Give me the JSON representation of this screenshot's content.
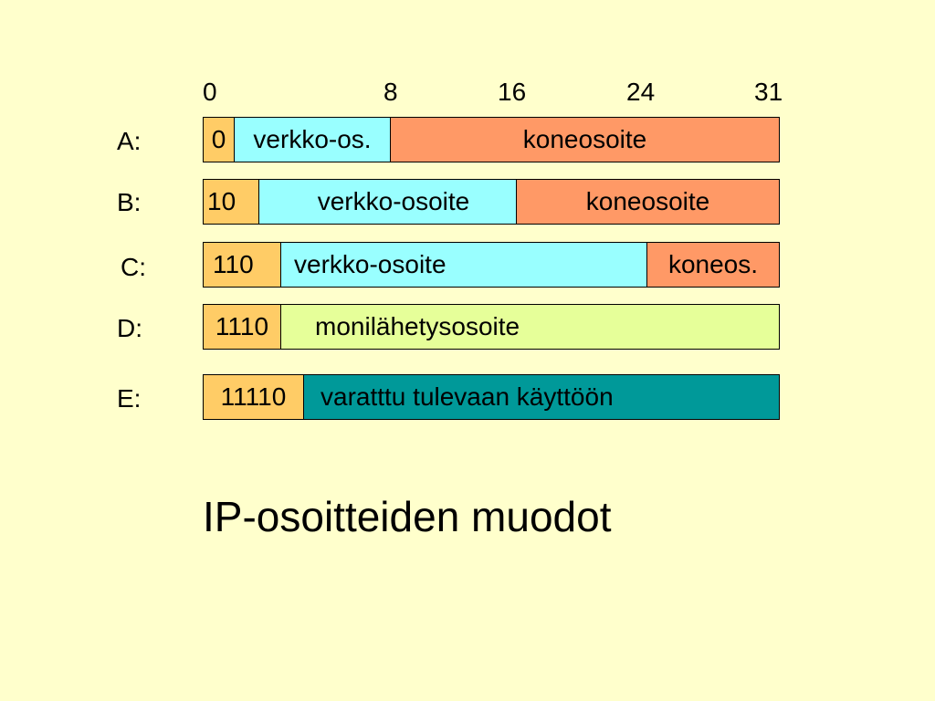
{
  "ticks": [
    "0",
    "8",
    "16",
    "24",
    "31"
  ],
  "rows": {
    "a": {
      "label": "A:",
      "prefix": "0",
      "network": "verkko-os.",
      "host": "koneosoite"
    },
    "b": {
      "label": "B:",
      "prefix": "10",
      "network": "verkko-osoite",
      "host": "koneosoite"
    },
    "c": {
      "label": "C:",
      "prefix": "110",
      "network": "verkko-osoite",
      "host": "koneos."
    },
    "d": {
      "label": "D:",
      "prefix": "1110",
      "body": "monilähetysosoite"
    },
    "e": {
      "label": "E:",
      "prefix": "11110",
      "body": "varatttu tulevaan käyttöön"
    }
  },
  "title": "IP-osoitteiden muodot",
  "colors": {
    "background": "#FFFFCC",
    "prefix": "#FFCC66",
    "network": "#99FFFF",
    "host": "#FF9966",
    "multicast": "#E6FF99",
    "reserved": "#009999"
  }
}
